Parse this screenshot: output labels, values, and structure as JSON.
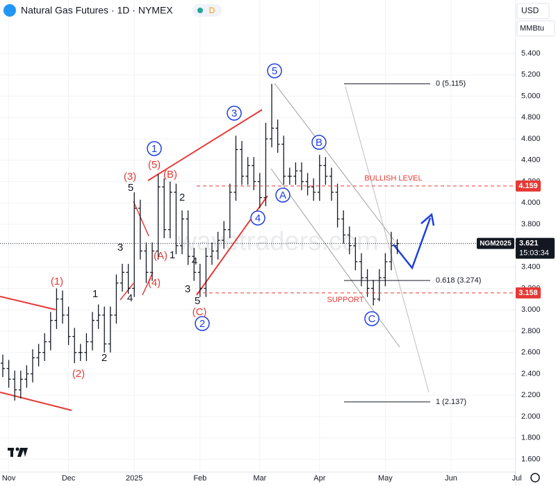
{
  "chart_data": {
    "type": "ohlc",
    "title": "Natural Gas Futures · 1D · NYMEX",
    "badge": "D",
    "currency": "USD",
    "unit": "MMBtu",
    "watermark": "wavetraders.com",
    "color": "#131722",
    "categories": [
      null,
      "Nov",
      null,
      null,
      null,
      null,
      null,
      null,
      null,
      null,
      null,
      "Dec",
      null,
      null,
      null,
      null,
      null,
      null,
      null,
      null,
      null,
      null,
      "2025",
      null,
      null,
      null,
      null,
      null,
      null,
      null,
      null,
      null,
      null,
      "Feb",
      null,
      null,
      null,
      null,
      null,
      null,
      null,
      null,
      null,
      "Mar",
      null,
      null,
      null,
      null,
      null,
      null,
      null,
      null,
      null,
      "Apr",
      null,
      null,
      null,
      null,
      null,
      null,
      null,
      null,
      null,
      null,
      "May",
      null,
      null,
      null,
      null,
      null,
      null,
      null,
      null,
      null,
      null,
      "Jun",
      null,
      null,
      null,
      null,
      null,
      null,
      null,
      null,
      null,
      null,
      "Jul"
    ],
    "series": [
      {
        "name": "open",
        "values": [
          2.5,
          2.45,
          2.35,
          2.25,
          2.35,
          2.4,
          2.55,
          2.6,
          2.7,
          2.9,
          3.1,
          2.95,
          2.75,
          2.6,
          2.6,
          2.7,
          2.9,
          2.95,
          2.68,
          2.95,
          3.25,
          3.35,
          3.2,
          3.95,
          3.55,
          3.35,
          3.55,
          4.15,
          3.75,
          4.1,
          3.6,
          3.85,
          3.5,
          3.35,
          3.2,
          3.5,
          3.55,
          3.65,
          3.75,
          4.1,
          4.5,
          4.25,
          4.35,
          4.2,
          4.05,
          4.6,
          4.7,
          4.55,
          4.25,
          4.25,
          4.3,
          4.2,
          4.15,
          4.1,
          4.35,
          4.25,
          4.1,
          3.85,
          3.7,
          3.6,
          3.45,
          3.3,
          3.2,
          3.1,
          3.3,
          3.45,
          3.6,
          null,
          null,
          null,
          null,
          null,
          null,
          null,
          null,
          null,
          null,
          null,
          null,
          null,
          null,
          null,
          null,
          null,
          null,
          null,
          null
        ]
      },
      {
        "name": "high",
        "values": [
          2.58,
          2.53,
          2.43,
          2.43,
          2.48,
          2.63,
          2.68,
          2.78,
          2.98,
          3.2,
          3.18,
          3.03,
          2.83,
          2.68,
          2.78,
          2.98,
          3.05,
          3.03,
          3.03,
          3.33,
          3.43,
          3.43,
          4.1,
          4.03,
          3.63,
          3.63,
          4.27,
          4.23,
          4.2,
          4.18,
          3.93,
          3.93,
          3.58,
          3.43,
          3.58,
          3.63,
          3.73,
          3.83,
          4.18,
          4.63,
          4.58,
          4.43,
          4.43,
          4.28,
          4.75,
          5.115,
          4.78,
          4.63,
          4.33,
          4.38,
          4.38,
          4.28,
          4.23,
          4.45,
          4.43,
          4.33,
          4.18,
          3.93,
          3.78,
          3.68,
          3.53,
          3.38,
          3.28,
          3.38,
          3.53,
          3.73,
          3.66,
          null,
          null,
          null,
          null,
          null,
          null,
          null,
          null,
          null,
          null,
          null,
          null,
          null,
          null,
          null,
          null,
          null,
          null,
          null,
          null
        ]
      },
      {
        "name": "low",
        "values": [
          2.37,
          2.27,
          2.15,
          2.17,
          2.27,
          2.32,
          2.47,
          2.52,
          2.62,
          2.82,
          2.87,
          2.67,
          2.5,
          2.52,
          2.52,
          2.62,
          2.82,
          2.6,
          2.6,
          2.87,
          3.17,
          3.15,
          3.12,
          3.47,
          3.25,
          3.27,
          3.47,
          3.67,
          3.67,
          3.52,
          3.52,
          3.42,
          3.27,
          3.12,
          3.12,
          3.42,
          3.47,
          3.57,
          3.67,
          4.02,
          4.17,
          4.17,
          4.12,
          3.95,
          3.97,
          4.52,
          4.47,
          4.17,
          4.17,
          4.17,
          4.12,
          4.07,
          4.02,
          4.02,
          4.17,
          4.02,
          3.77,
          3.62,
          3.52,
          3.37,
          3.22,
          3.12,
          3.04,
          3.08,
          3.22,
          3.37,
          3.52,
          null,
          null,
          null,
          null,
          null,
          null,
          null,
          null,
          null,
          null,
          null,
          null,
          null,
          null,
          null,
          null,
          null,
          null,
          null,
          null
        ]
      },
      {
        "name": "close",
        "values": [
          2.45,
          2.35,
          2.25,
          2.35,
          2.4,
          2.55,
          2.6,
          2.7,
          2.9,
          3.1,
          2.95,
          2.75,
          2.6,
          2.6,
          2.7,
          2.9,
          2.95,
          2.68,
          2.95,
          3.25,
          3.35,
          3.2,
          3.95,
          3.55,
          3.35,
          3.55,
          4.15,
          3.75,
          4.1,
          3.6,
          3.85,
          3.5,
          3.35,
          3.2,
          3.5,
          3.55,
          3.65,
          3.75,
          4.1,
          4.5,
          4.25,
          4.35,
          4.2,
          4.05,
          4.6,
          4.7,
          4.55,
          4.25,
          4.25,
          4.3,
          4.2,
          4.15,
          4.1,
          4.35,
          4.25,
          4.1,
          3.85,
          3.7,
          3.6,
          3.45,
          3.3,
          3.2,
          3.1,
          3.3,
          3.45,
          3.6,
          3.62,
          null,
          null,
          null,
          null,
          null,
          null,
          null,
          null,
          null,
          null,
          null,
          null,
          null,
          null,
          null,
          null,
          null,
          null,
          null,
          null
        ]
      }
    ],
    "ylim": [
      1.48,
      5.9
    ],
    "yticks": [
      {
        "value": 1.6,
        "label": "1.600"
      },
      {
        "value": 1.8,
        "label": "1.800"
      },
      {
        "value": 2.0,
        "label": "2.000"
      },
      {
        "value": 2.2,
        "label": "2.200"
      },
      {
        "value": 2.4,
        "label": "2.400"
      },
      {
        "value": 2.6,
        "label": "2.600"
      },
      {
        "value": 2.8,
        "label": "2.800"
      },
      {
        "value": 3.0,
        "label": "3.000"
      },
      {
        "value": 3.2,
        "label": "3.200"
      },
      {
        "value": 3.4,
        "label": "3.400"
      },
      {
        "value": 3.6,
        "label": "3.600"
      },
      {
        "value": 3.8,
        "label": "3.800"
      },
      {
        "value": 4.0,
        "label": "4.000"
      },
      {
        "value": 4.2,
        "label": "4.200"
      },
      {
        "value": 4.4,
        "label": "4.400"
      },
      {
        "value": 4.6,
        "label": "4.600"
      },
      {
        "value": 4.8,
        "label": "4.800"
      },
      {
        "value": 5.0,
        "label": "5.000"
      },
      {
        "value": 5.2,
        "label": "5.200"
      },
      {
        "value": 5.4,
        "label": "5.400"
      }
    ],
    "fib_levels": [
      {
        "label": "0 (5.115)",
        "value": 5.115
      },
      {
        "label": "0.618 (3.274)",
        "value": 3.274
      },
      {
        "label": "1 (2.137)",
        "value": 2.137
      }
    ],
    "price_lines": [
      {
        "label": "BULLISH LEVEL",
        "value": 4.159,
        "color": "#e53935"
      },
      {
        "label": "SUPPORT",
        "value": 3.158,
        "color": "#e53935"
      }
    ],
    "last": {
      "symbol": "NGM2025",
      "value": 3.621,
      "countdown": "15:03:34"
    },
    "annotations": [
      "5",
      "3",
      "1",
      "B",
      "A",
      "4",
      "2",
      "C",
      "(3)",
      "5",
      "(5)",
      "(B)",
      "1",
      "2",
      "(A)",
      "(4)",
      "4",
      "3",
      "(1)",
      "(2)",
      "1",
      "2",
      "4",
      "3",
      "5",
      "(C)"
    ]
  }
}
